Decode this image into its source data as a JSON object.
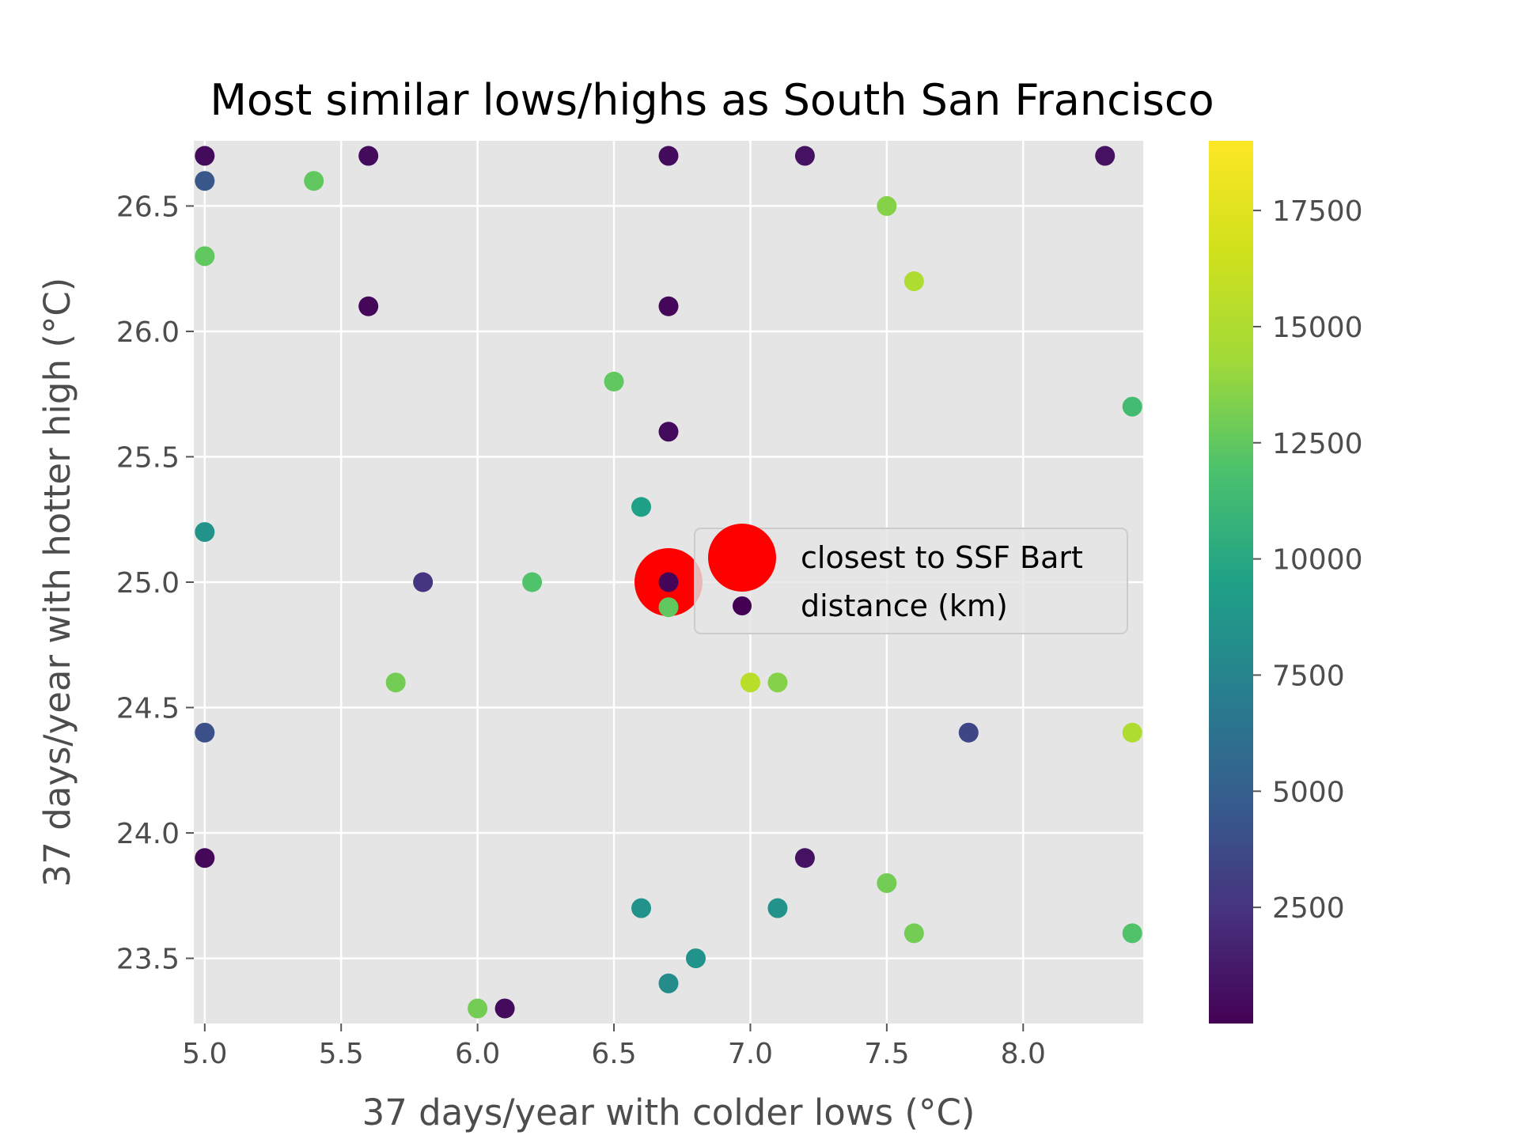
{
  "chart_data": {
    "type": "scatter",
    "title": "Most similar lows/highs as South San Francisco",
    "xlabel": "37 days/year with colder lows (°C)",
    "ylabel": "37 days/year with hotter high (°C)",
    "xlim": [
      4.96,
      8.44
    ],
    "ylim": [
      23.24,
      26.76
    ],
    "x_ticks": [
      "5.0",
      "5.5",
      "6.0",
      "6.5",
      "7.0",
      "7.5",
      "8.0"
    ],
    "y_ticks": [
      "23.5",
      "24.0",
      "24.5",
      "25.0",
      "25.5",
      "26.0",
      "26.5"
    ],
    "grid": true,
    "legend": {
      "placement": "center-right",
      "entries": [
        "closest to SSF Bart",
        "distance (km)"
      ]
    },
    "colorbar": {
      "range": [
        0,
        19000
      ],
      "ticks": [
        "2500",
        "5000",
        "7500",
        "10000",
        "12500",
        "15000",
        "17500"
      ]
    },
    "highlight": {
      "name": "closest to SSF Bart",
      "color": "#ff0000",
      "x": 6.7,
      "y": 25.0
    },
    "points": [
      {
        "x": 5.0,
        "y": 26.7,
        "c": 500
      },
      {
        "x": 5.6,
        "y": 26.7,
        "c": 500
      },
      {
        "x": 6.7,
        "y": 26.7,
        "c": 500
      },
      {
        "x": 7.2,
        "y": 26.7,
        "c": 800
      },
      {
        "x": 8.3,
        "y": 26.7,
        "c": 800
      },
      {
        "x": 5.0,
        "y": 26.6,
        "c": 4500
      },
      {
        "x": 5.4,
        "y": 26.6,
        "c": 12500
      },
      {
        "x": 7.5,
        "y": 26.5,
        "c": 13500
      },
      {
        "x": 5.0,
        "y": 26.3,
        "c": 12500
      },
      {
        "x": 7.6,
        "y": 26.2,
        "c": 15000
      },
      {
        "x": 5.6,
        "y": 26.1,
        "c": 300
      },
      {
        "x": 6.7,
        "y": 26.1,
        "c": 300
      },
      {
        "x": 6.5,
        "y": 25.8,
        "c": 12500
      },
      {
        "x": 8.4,
        "y": 25.7,
        "c": 11500
      },
      {
        "x": 6.7,
        "y": 25.6,
        "c": 500
      },
      {
        "x": 6.6,
        "y": 25.3,
        "c": 9500
      },
      {
        "x": 5.0,
        "y": 25.2,
        "c": 8500
      },
      {
        "x": 5.8,
        "y": 25.0,
        "c": 2500
      },
      {
        "x": 6.2,
        "y": 25.0,
        "c": 12000
      },
      {
        "x": 6.7,
        "y": 25.0,
        "c": 200
      },
      {
        "x": 6.7,
        "y": 24.9,
        "c": 12500
      },
      {
        "x": 5.7,
        "y": 24.6,
        "c": 13000
      },
      {
        "x": 7.0,
        "y": 24.6,
        "c": 15500
      },
      {
        "x": 7.1,
        "y": 24.6,
        "c": 13500
      },
      {
        "x": 5.0,
        "y": 24.4,
        "c": 4000
      },
      {
        "x": 7.8,
        "y": 24.4,
        "c": 3500
      },
      {
        "x": 8.4,
        "y": 24.4,
        "c": 15000
      },
      {
        "x": 5.0,
        "y": 23.9,
        "c": 300
      },
      {
        "x": 7.2,
        "y": 23.9,
        "c": 800
      },
      {
        "x": 7.5,
        "y": 23.8,
        "c": 13000
      },
      {
        "x": 6.6,
        "y": 23.7,
        "c": 8500
      },
      {
        "x": 7.1,
        "y": 23.7,
        "c": 8500
      },
      {
        "x": 7.6,
        "y": 23.6,
        "c": 13000
      },
      {
        "x": 8.4,
        "y": 23.6,
        "c": 12000
      },
      {
        "x": 6.8,
        "y": 23.5,
        "c": 8500
      },
      {
        "x": 6.7,
        "y": 23.4,
        "c": 8000
      },
      {
        "x": 6.0,
        "y": 23.3,
        "c": 13000
      },
      {
        "x": 6.1,
        "y": 23.3,
        "c": 500
      }
    ]
  }
}
